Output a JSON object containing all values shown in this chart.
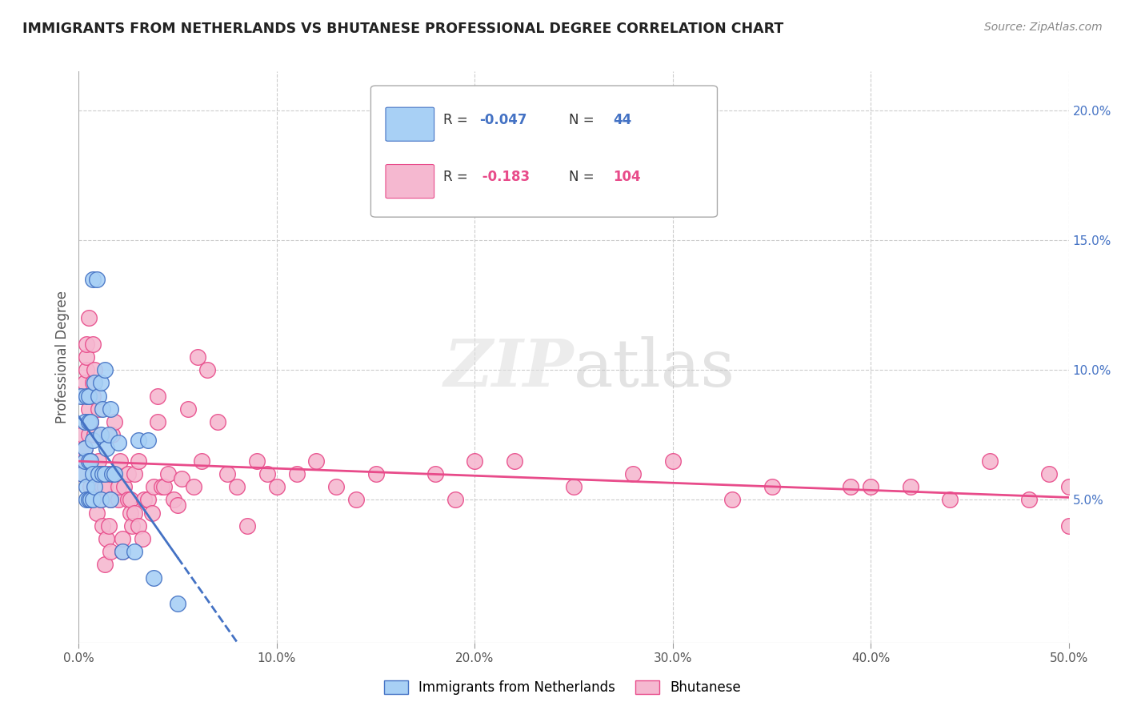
{
  "title": "IMMIGRANTS FROM NETHERLANDS VS BHUTANESE PROFESSIONAL DEGREE CORRELATION CHART",
  "source": "Source: ZipAtlas.com",
  "ylabel": "Professional Degree",
  "xlim": [
    0.0,
    0.5
  ],
  "ylim": [
    -0.005,
    0.215
  ],
  "xticklabels": [
    "0.0%",
    "",
    "",
    "",
    "",
    "",
    "",
    "",
    "",
    "",
    "10.0%",
    "",
    "",
    "",
    "",
    "",
    "",
    "",
    "",
    "",
    "20.0%",
    "",
    "",
    "",
    "",
    "",
    "",
    "",
    "",
    "",
    "30.0%",
    "",
    "",
    "",
    "",
    "",
    "",
    "",
    "",
    "",
    "40.0%",
    "",
    "",
    "",
    "",
    "",
    "",
    "",
    "",
    "",
    "50.0%"
  ],
  "yticks_right": [
    0.05,
    0.1,
    0.15,
    0.2
  ],
  "ytickslabels_right": [
    "5.0%",
    "10.0%",
    "15.0%",
    "20.0%"
  ],
  "color_netherlands": "#A8D0F5",
  "color_bhutanese": "#F5B8D0",
  "color_line_netherlands": "#4472C4",
  "color_line_bhutanese": "#E84B8A",
  "watermark": "ZIPatlas",
  "netherlands_x": [
    0.001,
    0.002,
    0.003,
    0.003,
    0.003,
    0.004,
    0.004,
    0.004,
    0.005,
    0.005,
    0.005,
    0.005,
    0.006,
    0.006,
    0.006,
    0.007,
    0.007,
    0.007,
    0.007,
    0.008,
    0.008,
    0.009,
    0.01,
    0.01,
    0.011,
    0.011,
    0.011,
    0.012,
    0.012,
    0.013,
    0.013,
    0.014,
    0.015,
    0.016,
    0.016,
    0.017,
    0.018,
    0.02,
    0.022,
    0.028,
    0.03,
    0.035,
    0.038,
    0.05
  ],
  "netherlands_y": [
    0.09,
    0.06,
    0.08,
    0.065,
    0.07,
    0.055,
    0.05,
    0.09,
    0.08,
    0.065,
    0.05,
    0.09,
    0.05,
    0.065,
    0.08,
    0.135,
    0.06,
    0.05,
    0.073,
    0.055,
    0.095,
    0.135,
    0.09,
    0.06,
    0.095,
    0.075,
    0.05,
    0.085,
    0.06,
    0.06,
    0.1,
    0.07,
    0.075,
    0.05,
    0.085,
    0.06,
    0.06,
    0.072,
    0.03,
    0.03,
    0.073,
    0.073,
    0.02,
    0.01
  ],
  "bhutanese_x": [
    0.001,
    0.001,
    0.002,
    0.002,
    0.002,
    0.003,
    0.003,
    0.003,
    0.004,
    0.004,
    0.004,
    0.005,
    0.005,
    0.005,
    0.005,
    0.006,
    0.006,
    0.006,
    0.007,
    0.007,
    0.007,
    0.008,
    0.008,
    0.008,
    0.009,
    0.009,
    0.01,
    0.01,
    0.011,
    0.011,
    0.012,
    0.012,
    0.013,
    0.013,
    0.014,
    0.015,
    0.015,
    0.016,
    0.016,
    0.017,
    0.018,
    0.02,
    0.02,
    0.021,
    0.022,
    0.022,
    0.023,
    0.025,
    0.025,
    0.026,
    0.026,
    0.027,
    0.028,
    0.028,
    0.03,
    0.03,
    0.032,
    0.033,
    0.035,
    0.037,
    0.038,
    0.04,
    0.04,
    0.042,
    0.043,
    0.045,
    0.048,
    0.05,
    0.052,
    0.055,
    0.058,
    0.06,
    0.062,
    0.065,
    0.07,
    0.075,
    0.08,
    0.085,
    0.09,
    0.095,
    0.1,
    0.11,
    0.12,
    0.13,
    0.14,
    0.15,
    0.18,
    0.19,
    0.2,
    0.22,
    0.25,
    0.28,
    0.3,
    0.33,
    0.35,
    0.39,
    0.4,
    0.42,
    0.44,
    0.46,
    0.48,
    0.49,
    0.5,
    0.5
  ],
  "bhutanese_y": [
    0.065,
    0.07,
    0.06,
    0.075,
    0.09,
    0.07,
    0.065,
    0.095,
    0.1,
    0.105,
    0.11,
    0.085,
    0.065,
    0.075,
    0.12,
    0.055,
    0.065,
    0.08,
    0.09,
    0.095,
    0.11,
    0.06,
    0.075,
    0.1,
    0.045,
    0.06,
    0.065,
    0.085,
    0.06,
    0.05,
    0.055,
    0.04,
    0.055,
    0.025,
    0.035,
    0.06,
    0.04,
    0.05,
    0.03,
    0.075,
    0.08,
    0.05,
    0.055,
    0.065,
    0.03,
    0.035,
    0.055,
    0.05,
    0.06,
    0.045,
    0.05,
    0.04,
    0.045,
    0.06,
    0.065,
    0.04,
    0.035,
    0.05,
    0.05,
    0.045,
    0.055,
    0.08,
    0.09,
    0.055,
    0.055,
    0.06,
    0.05,
    0.048,
    0.058,
    0.085,
    0.055,
    0.105,
    0.065,
    0.1,
    0.08,
    0.06,
    0.055,
    0.04,
    0.065,
    0.06,
    0.055,
    0.06,
    0.065,
    0.055,
    0.05,
    0.06,
    0.06,
    0.05,
    0.065,
    0.065,
    0.055,
    0.06,
    0.065,
    0.05,
    0.055,
    0.055,
    0.055,
    0.055,
    0.05,
    0.065,
    0.05,
    0.06,
    0.055,
    0.04
  ]
}
